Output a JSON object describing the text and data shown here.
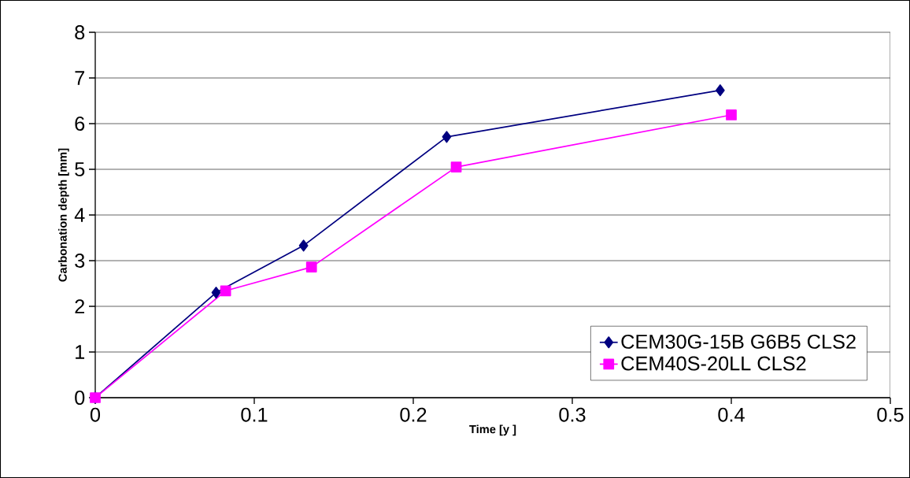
{
  "chart_data": {
    "type": "line",
    "xlabel": "Time [y ]",
    "ylabel": "Carbonation depth [mm]",
    "xlim": [
      0,
      0.5
    ],
    "xticks": [
      0,
      0.1,
      0.2,
      0.3,
      0.4,
      0.5
    ],
    "ylim": [
      0,
      8
    ],
    "yticks": [
      0,
      1,
      2,
      3,
      4,
      5,
      6,
      7,
      8
    ],
    "grid": "y",
    "legend": "bottom right",
    "series": [
      {
        "name": "CEM30G-15B G6B5 CLS2",
        "color": "#000080",
        "marker": "diamond",
        "x": [
          0,
          0.076,
          0.131,
          0.221,
          0.393
        ],
        "values": [
          0,
          2.3,
          3.33,
          5.71,
          6.73
        ]
      },
      {
        "name": "CEM40S-20LL CLS2",
        "color": "#ff00ff",
        "marker": "square",
        "x": [
          0,
          0.082,
          0.136,
          0.227,
          0.4
        ],
        "values": [
          0,
          2.34,
          2.86,
          5.05,
          6.19
        ]
      }
    ]
  }
}
